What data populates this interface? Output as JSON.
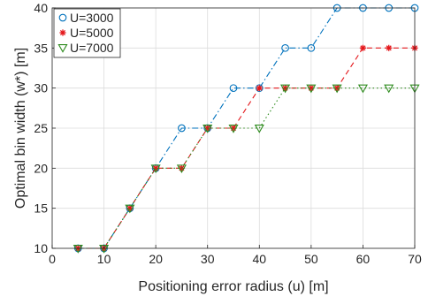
{
  "chart_data": {
    "type": "line",
    "title": "",
    "xlabel": "Positioning error radius (u) [m]",
    "ylabel": "Optimal bin width (w*) [m]",
    "xlim": [
      0,
      70
    ],
    "ylim": [
      10,
      40
    ],
    "xticks": [
      0,
      10,
      20,
      30,
      40,
      50,
      60,
      70
    ],
    "yticks": [
      10,
      15,
      20,
      25,
      30,
      35,
      40
    ],
    "grid": true,
    "legend_position": "top-left",
    "x": [
      5,
      10,
      15,
      20,
      25,
      30,
      35,
      40,
      45,
      50,
      55,
      60,
      65,
      70
    ],
    "series": [
      {
        "name": "U=3000",
        "values": [
          10,
          10,
          15,
          20,
          25,
          25,
          30,
          30,
          35,
          35,
          40,
          40,
          40,
          40
        ],
        "color": "#0072BD",
        "marker": "circle",
        "line_style": "dash-dot"
      },
      {
        "name": "U=5000",
        "values": [
          10,
          10,
          15,
          20,
          20,
          25,
          25,
          30,
          30,
          30,
          30,
          35,
          35,
          35
        ],
        "color": "#E4171B",
        "marker": "asterisk",
        "line_style": "dashed"
      },
      {
        "name": "U=7000",
        "values": [
          10,
          10,
          15,
          20,
          20,
          25,
          25,
          25,
          30,
          30,
          30,
          30,
          30,
          30
        ],
        "color": "#2E8B1E",
        "marker": "triangle-down",
        "line_style": "dotted"
      }
    ]
  }
}
